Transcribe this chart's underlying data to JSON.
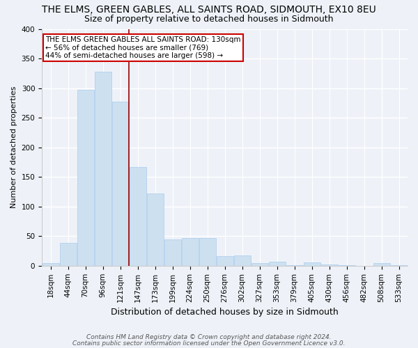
{
  "title": "THE ELMS, GREEN GABLES, ALL SAINTS ROAD, SIDMOUTH, EX10 8EU",
  "subtitle": "Size of property relative to detached houses in Sidmouth",
  "xlabel": "Distribution of detached houses by size in Sidmouth",
  "ylabel": "Number of detached properties",
  "footnote1": "Contains HM Land Registry data © Crown copyright and database right 2024.",
  "footnote2": "Contains public sector information licensed under the Open Government Licence v3.0.",
  "bar_labels": [
    "18sqm",
    "44sqm",
    "70sqm",
    "96sqm",
    "121sqm",
    "147sqm",
    "173sqm",
    "199sqm",
    "224sqm",
    "250sqm",
    "276sqm",
    "302sqm",
    "327sqm",
    "353sqm",
    "379sqm",
    "405sqm",
    "430sqm",
    "456sqm",
    "482sqm",
    "508sqm",
    "533sqm"
  ],
  "bar_values": [
    5,
    38,
    297,
    328,
    277,
    167,
    122,
    45,
    47,
    47,
    16,
    17,
    5,
    7,
    1,
    6,
    2,
    1,
    0,
    5,
    1
  ],
  "bar_color": "#cce0f0",
  "bar_edge_color": "#aaccee",
  "vline_color": "#990000",
  "annotation_line1": "THE ELMS GREEN GABLES ALL SAINTS ROAD: 130sqm",
  "annotation_line2": "← 56% of detached houses are smaller (769)",
  "annotation_line3": "44% of semi-detached houses are larger (598) →",
  "annotation_box_color": "#ffffff",
  "annotation_border_color": "#cc0000",
  "ylim": [
    0,
    400
  ],
  "yticks": [
    0,
    50,
    100,
    150,
    200,
    250,
    300,
    350,
    400
  ],
  "bg_color": "#eef2f8",
  "grid_color": "#ffffff",
  "title_fontsize": 10,
  "subtitle_fontsize": 9,
  "xlabel_fontsize": 9,
  "ylabel_fontsize": 8,
  "tick_fontsize": 7.5,
  "annot_fontsize": 7.5,
  "footnote_fontsize": 6.5,
  "bar_width": 0.96,
  "vline_pos": 4.5
}
